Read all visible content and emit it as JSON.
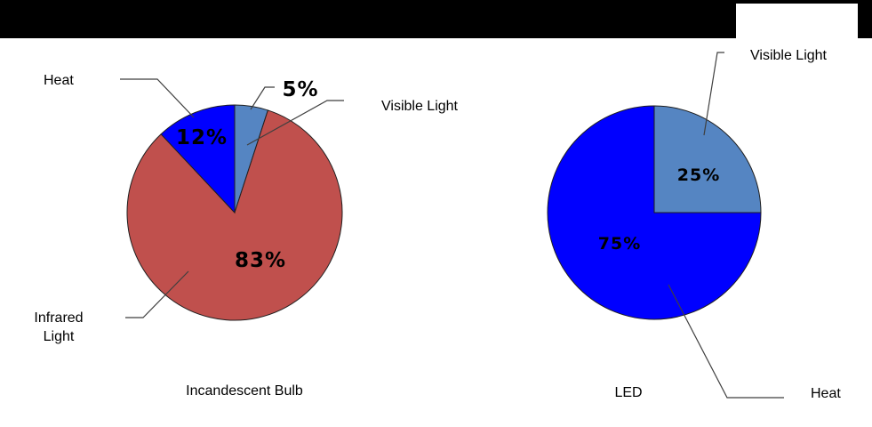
{
  "colors": {
    "background": "#FFFFFF",
    "header_bar": "#000000",
    "leader_line": "#3F3F3F",
    "slice_border": "#1F1F1F"
  },
  "chart_data": [
    {
      "type": "pie",
      "title": "Incandescent Bulb",
      "start_angle_deg": -90,
      "direction": "clockwise",
      "slices": [
        {
          "label": "Visible Light",
          "value": 5,
          "pct_label": "5%",
          "color": "#5585C2"
        },
        {
          "label": "Infrared Light",
          "value": 83,
          "pct_label": "83%",
          "color": "#C0504D"
        },
        {
          "label": "Heat",
          "value": 12,
          "pct_label": "12%",
          "color": "#0000FF"
        }
      ]
    },
    {
      "type": "pie",
      "title": "LED",
      "start_angle_deg": -90,
      "direction": "clockwise",
      "slices": [
        {
          "label": "Visible Light",
          "value": 25,
          "pct_label": "25%",
          "color": "#5585C2"
        },
        {
          "label": "Heat",
          "value": 75,
          "pct_label": "75%",
          "color": "#0000FF"
        }
      ]
    }
  ]
}
